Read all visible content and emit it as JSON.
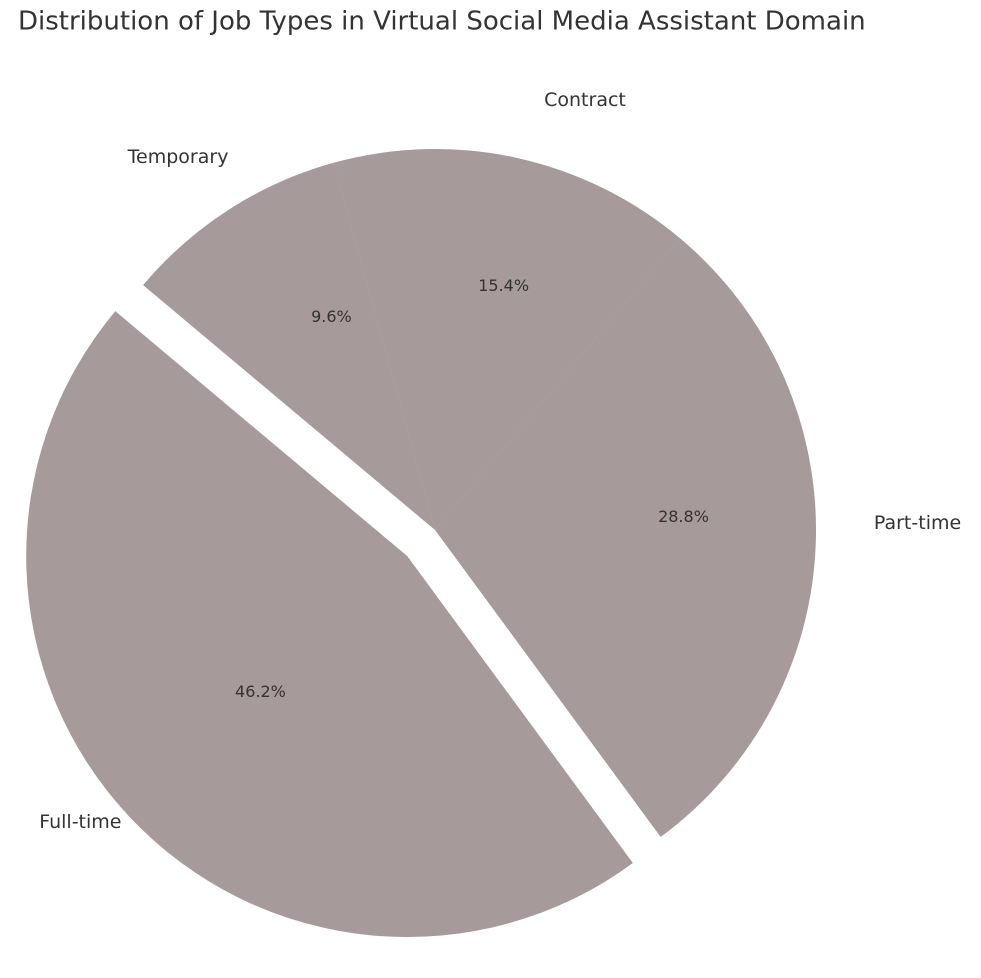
{
  "chart_data": {
    "type": "pie",
    "title": "Distribution of Job Types in Virtual Social Media Assistant Domain",
    "categories": [
      "Full-time",
      "Part-time",
      "Contract",
      "Temporary"
    ],
    "values": [
      46.2,
      28.8,
      15.4,
      9.6
    ],
    "value_labels": [
      "46.2%",
      "28.8%",
      "15.4%",
      "9.6%"
    ],
    "colors": [
      "#ff9999",
      "#66b3ff",
      "#99ff99",
      "#ffcc99"
    ]
  }
}
